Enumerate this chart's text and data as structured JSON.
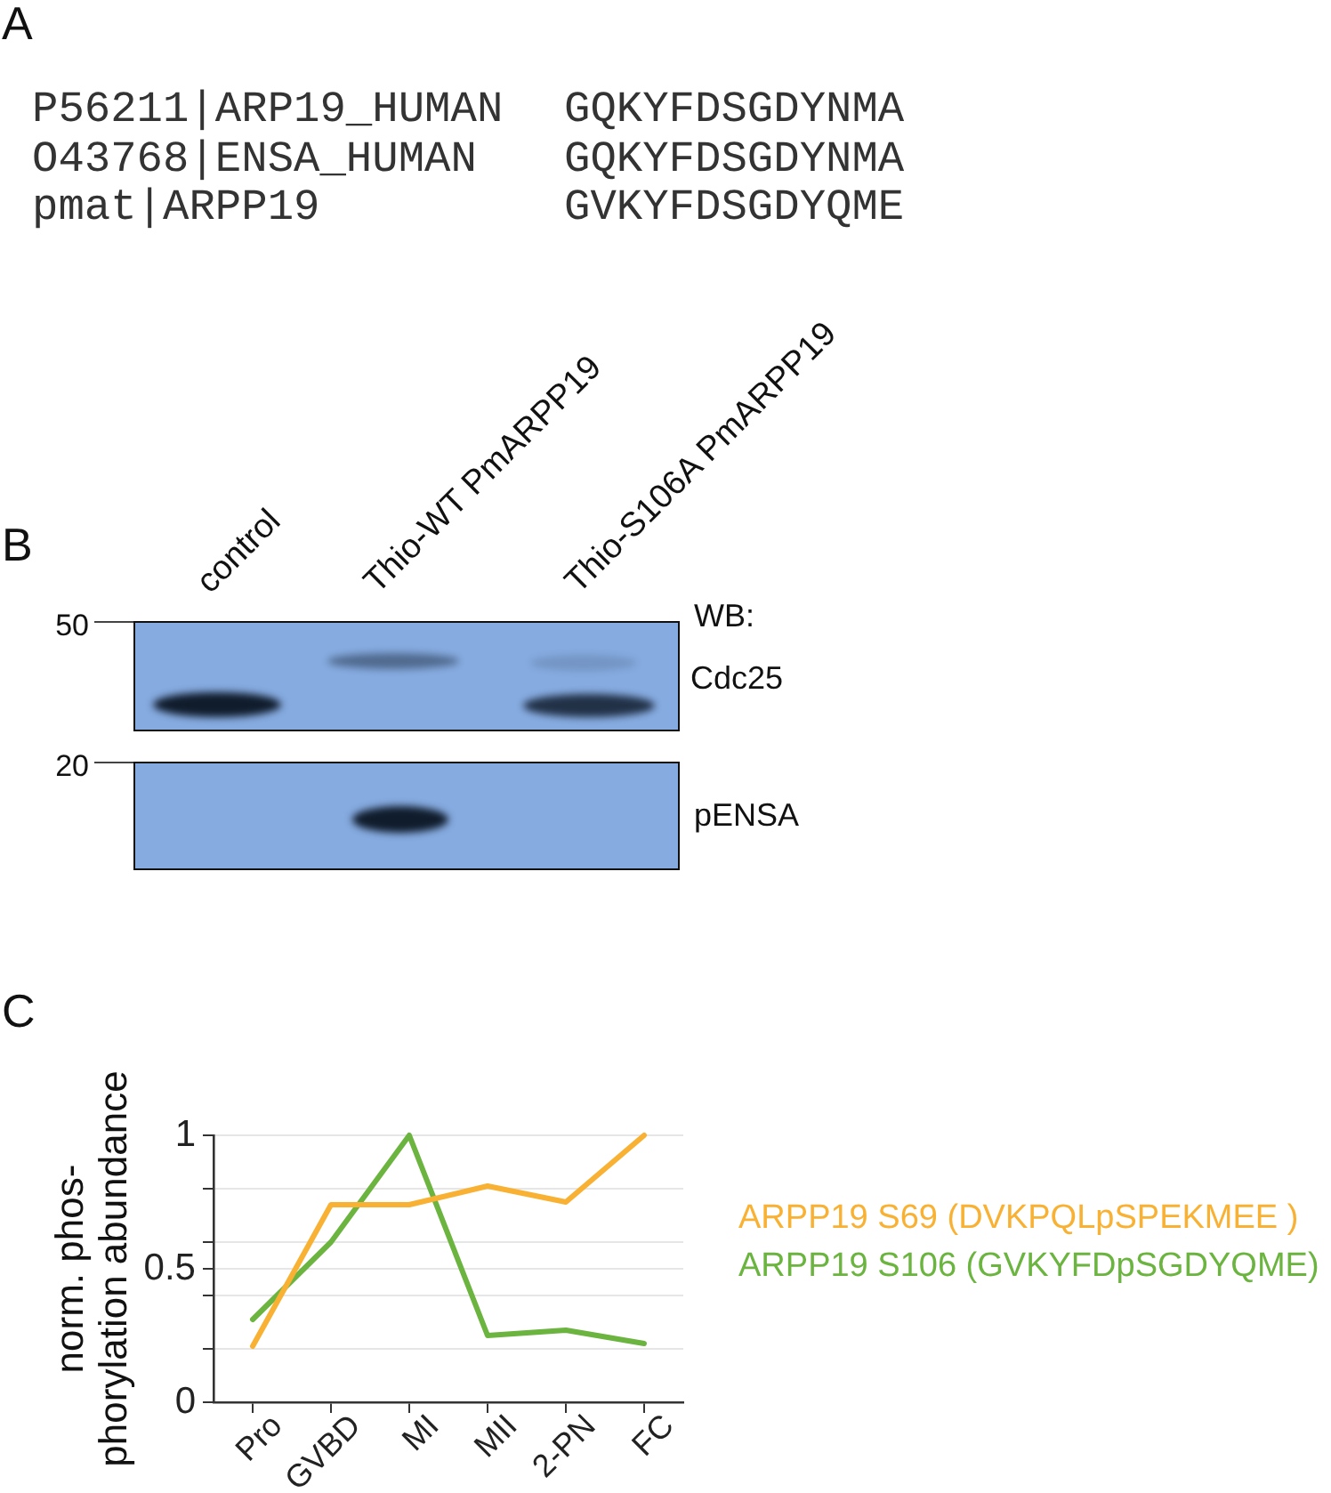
{
  "chart_data": [
    {
      "type": "other",
      "title": "A",
      "annotations": [
        "P56211|ARP19_HUMAN",
        "GQKYFDSGDYNMA",
        "O43768|ENSA_HUMAN",
        "GQKYFDSGDYNMA",
        "pmat|ARPP19",
        "GVKYFDSGDYQME"
      ]
    },
    {
      "type": "other",
      "title": "B",
      "annotations": [
        "control",
        "Thio-WT PmARPP19",
        "Thio-S106A PmARPP19",
        "WB:",
        "Cdc25",
        "pENSA",
        "50",
        "20"
      ]
    },
    {
      "type": "line",
      "title": "C",
      "categories": [
        "Pro",
        "GVBD",
        "MI",
        "MII",
        "2-PN",
        "FC"
      ],
      "ylabel": "norm. phos-\nphorylation abundance",
      "ylim": [
        0,
        1
      ],
      "yticks": [
        0,
        {
          "value": 0.2,
          "label": null
        },
        {
          "value": 0.4,
          "label": null
        },
        0.5,
        {
          "value": 0.6,
          "label": null
        },
        {
          "value": 0.8,
          "label": null
        },
        1
      ],
      "grid": "y",
      "legend": "right",
      "series": [
        {
          "name": "ARPP19 S69 (DVKPQLpSPEKMEE )",
          "color": "#f8b133",
          "values": [
            0.21,
            0.74,
            0.74,
            0.81,
            0.75,
            1.0
          ]
        },
        {
          "name": "ARPP19 S106 (GVKYFDpSGDYQME)",
          "color": "#6bb43f",
          "values": [
            0.31,
            0.6,
            1.0,
            0.25,
            0.27,
            0.22
          ]
        }
      ]
    }
  ]
}
